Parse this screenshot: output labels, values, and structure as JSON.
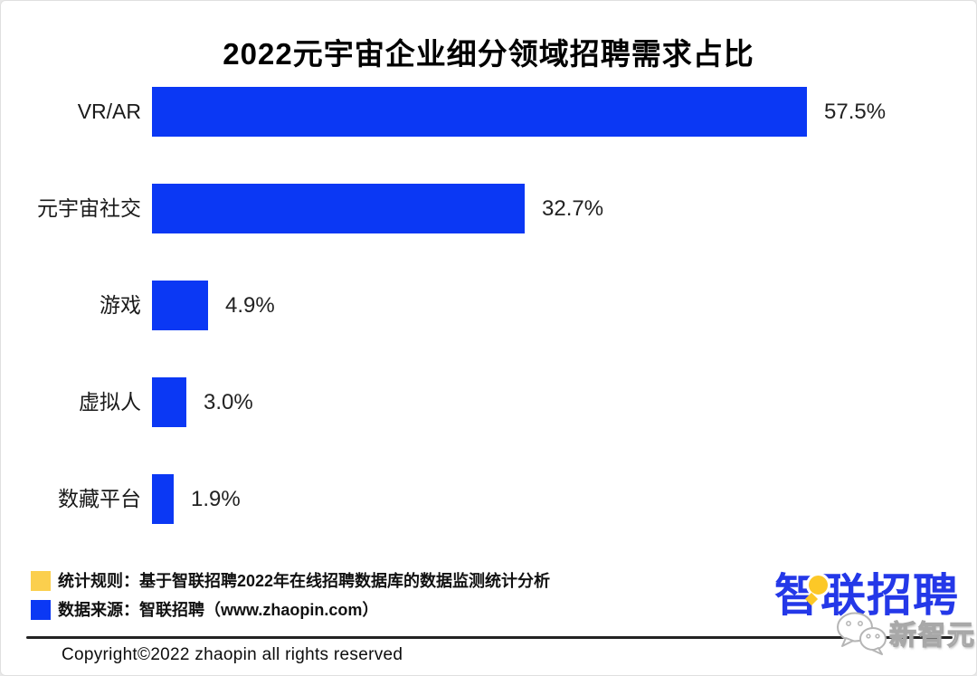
{
  "page": {
    "copyright": "Copyright©2022 zhaopin all rights reserved"
  },
  "chart_data": {
    "type": "bar",
    "orientation": "horizontal",
    "title": "2022元宇宙企业细分领域招聘需求占比",
    "categories": [
      "VR/AR",
      "元宇宙社交",
      "游戏",
      "虚拟人",
      "数藏平台"
    ],
    "values": [
      57.5,
      32.7,
      4.9,
      3.0,
      1.9
    ],
    "display_values": [
      "57.5%",
      "32.7%",
      "4.9%",
      "3.0%",
      "1.9%"
    ],
    "unit": "%",
    "bar_color": "#0b38f4",
    "xlim": [
      0,
      60
    ],
    "grid": false,
    "value_label_position": "outside-end",
    "category_axis_side": "left"
  },
  "legend": {
    "items": [
      {
        "swatch_color": "#fbcf4d",
        "label": "统计规则：基于智联招聘2022年在线招聘数据库的数据监测统计分析"
      },
      {
        "swatch_color": "#0b38f4",
        "label": "数据来源：智联招聘（www.zhaopin.com）"
      }
    ]
  },
  "branding": {
    "logo_text": "智联招聘",
    "logo_color": "#2438e8",
    "logo_accent_color": "#fcc827",
    "watermark_text": "新智元"
  }
}
